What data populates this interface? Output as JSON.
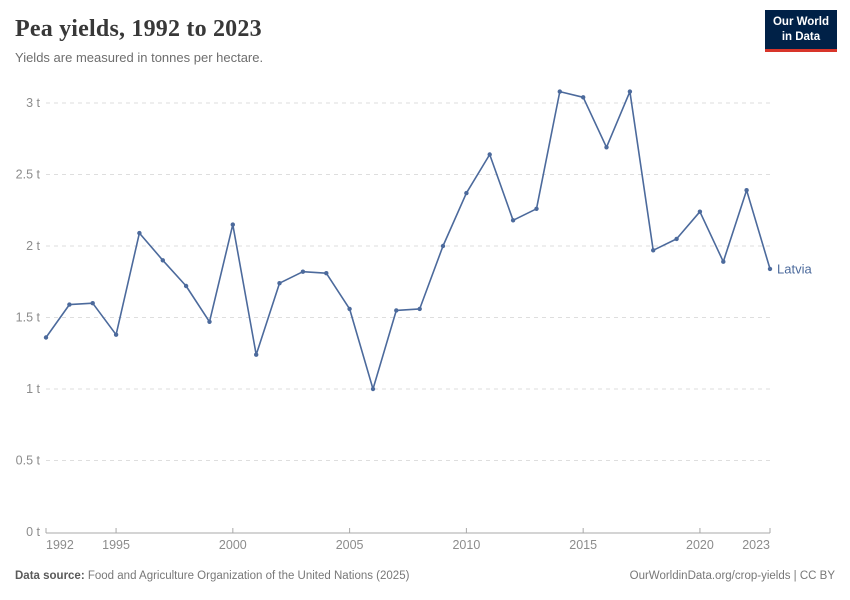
{
  "header": {
    "title": "Pea yields, 1992 to 2023",
    "subtitle": "Yields are measured in tonnes per hectare."
  },
  "logo": {
    "line1": "Our World",
    "line2": "in Data",
    "bg_color": "#002147",
    "accent_color": "#d8352a"
  },
  "chart_data": {
    "type": "line",
    "title": "Pea yields, 1992 to 2023",
    "xlabel": "",
    "ylabel": "tonnes per hectare",
    "x": [
      1992,
      1993,
      1994,
      1995,
      1996,
      1997,
      1998,
      1999,
      2000,
      2001,
      2002,
      2003,
      2004,
      2005,
      2006,
      2007,
      2008,
      2009,
      2010,
      2011,
      2012,
      2013,
      2014,
      2015,
      2016,
      2017,
      2018,
      2019,
      2020,
      2021,
      2022,
      2023
    ],
    "series": [
      {
        "name": "Latvia",
        "color": "#4c6a9c",
        "values": [
          1.36,
          1.59,
          1.6,
          1.38,
          2.09,
          1.9,
          1.72,
          1.47,
          2.15,
          1.24,
          1.74,
          1.82,
          1.81,
          1.56,
          1.0,
          1.55,
          1.56,
          2.0,
          2.37,
          2.64,
          2.18,
          2.26,
          3.08,
          3.04,
          2.69,
          3.08,
          1.97,
          2.05,
          2.24,
          1.89,
          2.39,
          1.84
        ]
      }
    ],
    "xlim": [
      1992,
      2023
    ],
    "ylim": [
      0,
      3.2
    ],
    "xticks": [
      1992,
      1995,
      2000,
      2005,
      2010,
      2015,
      2020,
      2023
    ],
    "yticks": [
      0,
      0.5,
      1,
      1.5,
      2,
      2.5,
      3
    ],
    "ytick_labels": [
      "0 t",
      "0.5 t",
      "1 t",
      "1.5 t",
      "2 t",
      "2.5 t",
      "3 t"
    ],
    "grid": "horizontal-dashed",
    "grid_color": "#dedede",
    "axis_color": "#a8a8a8",
    "tick_label_color": "#8c8c8c",
    "legend_position": "end-of-line-label"
  },
  "footer": {
    "source_label": "Data source:",
    "source_text": " Food and Agriculture Organization of the United Nations (2025)",
    "right_text": "OurWorldinData.org/crop-yields | CC BY"
  }
}
